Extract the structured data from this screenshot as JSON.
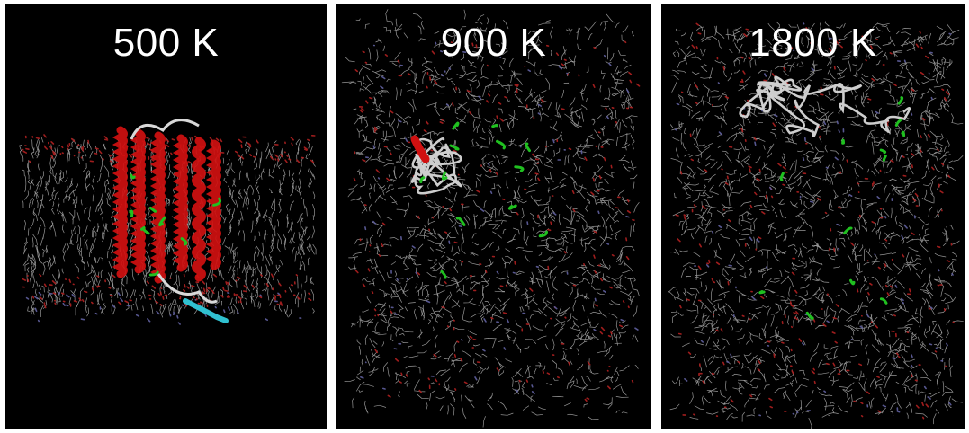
{
  "panels": [
    {
      "label": "500 K",
      "structure": "folded helices in membrane"
    },
    {
      "label": "900 K",
      "structure": "partially unfolded chain in disordered membrane"
    },
    {
      "label": "1800 K",
      "structure": "fully unfolded chain in dispersed lipids"
    }
  ],
  "colors": {
    "background": "#000000",
    "lipid_tail": "#c8c8c8",
    "lipid_oxygen": "#b02020",
    "lipid_nitrogen": "#6060a0",
    "helix": "#d01010",
    "coil": "#d8d8d8",
    "turn": "#20c020",
    "strand": "#30c0d0"
  }
}
